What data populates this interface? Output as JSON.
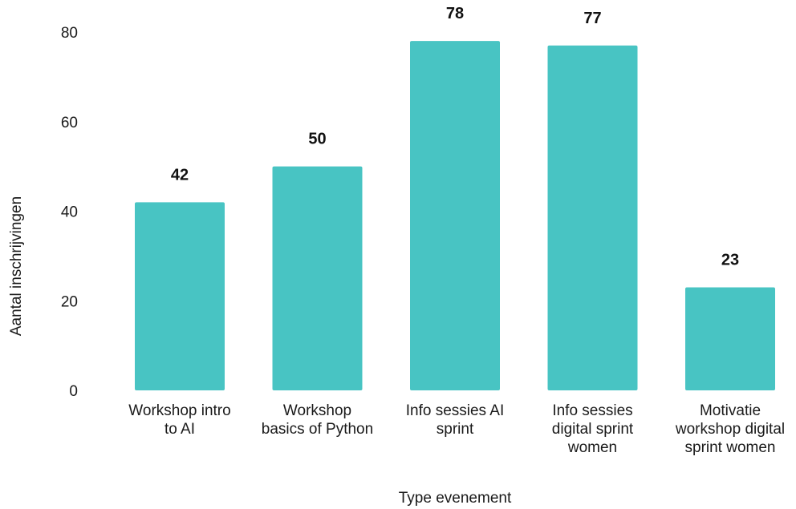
{
  "chart_data": {
    "type": "bar",
    "categories": [
      [
        "Workshop intro",
        "to AI"
      ],
      [
        "Workshop",
        "basics of Python"
      ],
      [
        "Info sessies AI",
        "sprint"
      ],
      [
        "Info sessies",
        "digital sprint",
        "women"
      ],
      [
        "Motivatie",
        "workshop digital",
        "sprint women"
      ]
    ],
    "values": [
      42,
      50,
      78,
      77,
      23
    ],
    "xlabel": "Type evenement",
    "ylabel": "Aantal inschrijvingen",
    "ylim": [
      0,
      80
    ],
    "yticks": [
      0,
      20,
      40,
      60,
      80
    ],
    "grid": false,
    "bar_color": "#48c4c3",
    "data_labels": true
  }
}
